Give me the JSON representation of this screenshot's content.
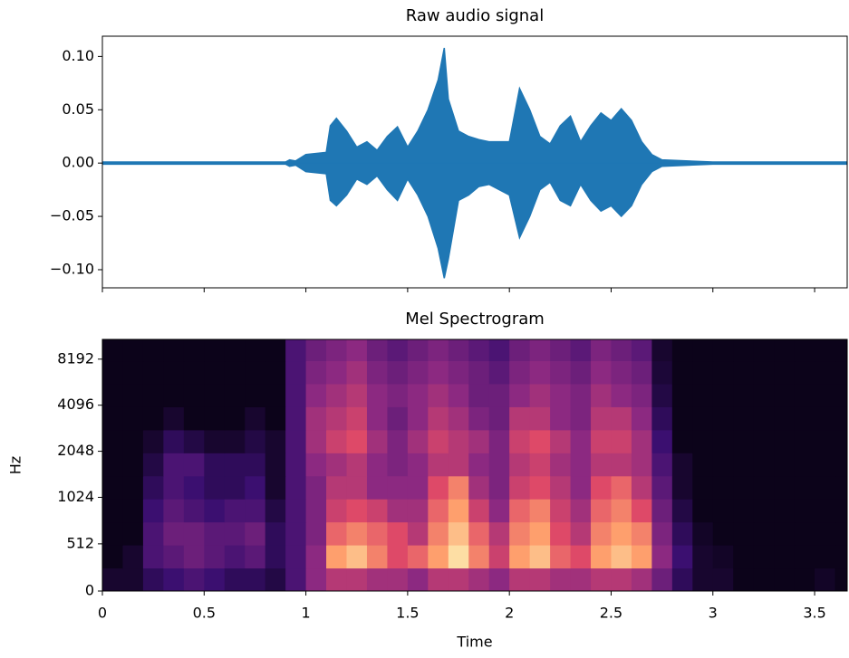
{
  "chart_data": [
    {
      "type": "area",
      "title": "Raw audio signal",
      "color": "#1f77b4",
      "x": [
        0,
        0.9,
        0.92,
        0.95,
        1.0,
        1.1,
        1.12,
        1.15,
        1.2,
        1.25,
        1.3,
        1.35,
        1.4,
        1.45,
        1.5,
        1.55,
        1.6,
        1.65,
        1.68,
        1.7,
        1.75,
        1.8,
        1.85,
        1.9,
        1.95,
        2.0,
        2.05,
        2.1,
        2.15,
        2.2,
        2.25,
        2.3,
        2.35,
        2.4,
        2.45,
        2.5,
        2.55,
        2.6,
        2.65,
        2.7,
        2.75,
        3.0,
        3.66
      ],
      "upper": [
        0.001,
        0.001,
        0.003,
        0.002,
        0.008,
        0.01,
        0.035,
        0.042,
        0.03,
        0.015,
        0.02,
        0.012,
        0.025,
        0.034,
        0.015,
        0.03,
        0.05,
        0.078,
        0.108,
        0.06,
        0.03,
        0.025,
        0.022,
        0.02,
        0.02,
        0.02,
        0.07,
        0.05,
        0.025,
        0.018,
        0.035,
        0.044,
        0.02,
        0.035,
        0.047,
        0.04,
        0.051,
        0.04,
        0.02,
        0.008,
        0.003,
        0.001,
        0.001
      ],
      "lower": [
        -0.001,
        -0.001,
        -0.003,
        -0.002,
        -0.008,
        -0.01,
        -0.035,
        -0.04,
        -0.03,
        -0.015,
        -0.02,
        -0.012,
        -0.025,
        -0.035,
        -0.015,
        -0.03,
        -0.05,
        -0.08,
        -0.108,
        -0.09,
        -0.035,
        -0.03,
        -0.022,
        -0.02,
        -0.025,
        -0.03,
        -0.07,
        -0.05,
        -0.025,
        -0.018,
        -0.035,
        -0.04,
        -0.02,
        -0.035,
        -0.045,
        -0.04,
        -0.05,
        -0.04,
        -0.02,
        -0.008,
        -0.003,
        -0.001,
        -0.001
      ],
      "xlim": [
        0,
        3.66
      ],
      "xticks": [
        0,
        0.5,
        1,
        1.5,
        2,
        2.5,
        3,
        3.5
      ],
      "show_xticklabels": false,
      "ylim": [
        -0.117,
        0.119
      ],
      "yticks": [
        {
          "value": -0.1,
          "label": "−0.10"
        },
        {
          "value": -0.05,
          "label": "−0.05"
        },
        {
          "value": 0,
          "label": "0.00"
        },
        {
          "value": 0.05,
          "label": "0.05"
        },
        {
          "value": 0.1,
          "label": "0.10"
        }
      ]
    },
    {
      "type": "heatmap",
      "title": "Mel Spectrogram",
      "xlabel": "Time",
      "ylabel": "Hz",
      "colormap": "magma",
      "yscale": "symlog",
      "linthresh": 1000,
      "x_edges": [
        0,
        0.1,
        0.2,
        0.3,
        0.4,
        0.5,
        0.6,
        0.7,
        0.8,
        0.9,
        1.0,
        1.1,
        1.2,
        1.3,
        1.4,
        1.5,
        1.6,
        1.7,
        1.8,
        1.9,
        2.0,
        2.1,
        2.2,
        2.3,
        2.4,
        2.5,
        2.6,
        2.7,
        2.8,
        2.9,
        3.0,
        3.1,
        3.2,
        3.3,
        3.4,
        3.5,
        3.6,
        3.66
      ],
      "y_edges": [
        0,
        250,
        500,
        750,
        1000,
        1414,
        2000,
        2828,
        4000,
        5657,
        8000,
        11025
      ],
      "values": [
        [
          0.1,
          0.1,
          0.2,
          0.25,
          0.3,
          0.25,
          0.2,
          0.2,
          0.15,
          0.3,
          0.5,
          0.6,
          0.6,
          0.55,
          0.55,
          0.5,
          0.6,
          0.6,
          0.55,
          0.5,
          0.6,
          0.6,
          0.55,
          0.55,
          0.6,
          0.6,
          0.55,
          0.4,
          0.2,
          0.1,
          0.1,
          0.05,
          0.05,
          0.05,
          0.05,
          0.08,
          0.05
        ],
        [
          0.05,
          0.1,
          0.3,
          0.35,
          0.4,
          0.35,
          0.3,
          0.35,
          0.2,
          0.3,
          0.5,
          0.85,
          0.9,
          0.8,
          0.7,
          0.75,
          0.85,
          0.95,
          0.8,
          0.65,
          0.85,
          0.9,
          0.75,
          0.7,
          0.85,
          0.9,
          0.85,
          0.5,
          0.25,
          0.1,
          0.08,
          0.05,
          0.05,
          0.05,
          0.05,
          0.05,
          0.05
        ],
        [
          0.05,
          0.05,
          0.3,
          0.4,
          0.4,
          0.35,
          0.35,
          0.4,
          0.2,
          0.3,
          0.45,
          0.75,
          0.8,
          0.75,
          0.7,
          0.6,
          0.8,
          0.9,
          0.75,
          0.6,
          0.8,
          0.85,
          0.7,
          0.6,
          0.8,
          0.85,
          0.8,
          0.45,
          0.2,
          0.08,
          0.05,
          0.05,
          0.05,
          0.05,
          0.05,
          0.05,
          0.05
        ],
        [
          0.05,
          0.05,
          0.25,
          0.35,
          0.3,
          0.25,
          0.3,
          0.3,
          0.15,
          0.3,
          0.45,
          0.65,
          0.7,
          0.65,
          0.55,
          0.55,
          0.75,
          0.85,
          0.65,
          0.5,
          0.75,
          0.8,
          0.65,
          0.55,
          0.75,
          0.8,
          0.7,
          0.4,
          0.15,
          0.05,
          0.05,
          0.05,
          0.05,
          0.05,
          0.05,
          0.05,
          0.05
        ],
        [
          0.05,
          0.05,
          0.2,
          0.3,
          0.25,
          0.2,
          0.2,
          0.25,
          0.1,
          0.3,
          0.45,
          0.6,
          0.6,
          0.5,
          0.5,
          0.5,
          0.7,
          0.8,
          0.55,
          0.45,
          0.65,
          0.7,
          0.6,
          0.5,
          0.7,
          0.75,
          0.6,
          0.35,
          0.1,
          0.05,
          0.05,
          0.05,
          0.05,
          0.05,
          0.05,
          0.05,
          0.05
        ],
        [
          0.05,
          0.05,
          0.15,
          0.3,
          0.3,
          0.2,
          0.2,
          0.2,
          0.1,
          0.3,
          0.5,
          0.55,
          0.6,
          0.5,
          0.45,
          0.5,
          0.6,
          0.6,
          0.5,
          0.45,
          0.6,
          0.65,
          0.55,
          0.5,
          0.6,
          0.6,
          0.55,
          0.3,
          0.1,
          0.05,
          0.05,
          0.05,
          0.05,
          0.05,
          0.05,
          0.05,
          0.05
        ],
        [
          0.05,
          0.05,
          0.1,
          0.2,
          0.15,
          0.1,
          0.1,
          0.15,
          0.1,
          0.3,
          0.55,
          0.65,
          0.7,
          0.55,
          0.45,
          0.55,
          0.65,
          0.6,
          0.55,
          0.45,
          0.65,
          0.7,
          0.6,
          0.5,
          0.65,
          0.65,
          0.55,
          0.25,
          0.05,
          0.05,
          0.05,
          0.05,
          0.05,
          0.05,
          0.05,
          0.05,
          0.05
        ],
        [
          0.05,
          0.05,
          0.05,
          0.1,
          0.05,
          0.05,
          0.05,
          0.1,
          0.05,
          0.3,
          0.55,
          0.6,
          0.65,
          0.5,
          0.4,
          0.5,
          0.6,
          0.55,
          0.45,
          0.4,
          0.6,
          0.6,
          0.5,
          0.45,
          0.6,
          0.6,
          0.5,
          0.2,
          0.05,
          0.05,
          0.05,
          0.05,
          0.05,
          0.05,
          0.05,
          0.05,
          0.05
        ],
        [
          0.05,
          0.05,
          0.05,
          0.05,
          0.05,
          0.05,
          0.05,
          0.05,
          0.05,
          0.3,
          0.5,
          0.55,
          0.6,
          0.5,
          0.45,
          0.5,
          0.55,
          0.5,
          0.4,
          0.4,
          0.5,
          0.55,
          0.5,
          0.45,
          0.55,
          0.5,
          0.45,
          0.15,
          0.05,
          0.05,
          0.05,
          0.05,
          0.05,
          0.05,
          0.05,
          0.05,
          0.05
        ],
        [
          0.05,
          0.05,
          0.05,
          0.05,
          0.05,
          0.05,
          0.05,
          0.05,
          0.05,
          0.3,
          0.45,
          0.5,
          0.55,
          0.45,
          0.4,
          0.45,
          0.5,
          0.45,
          0.4,
          0.35,
          0.45,
          0.5,
          0.45,
          0.4,
          0.5,
          0.45,
          0.4,
          0.12,
          0.05,
          0.05,
          0.05,
          0.05,
          0.05,
          0.05,
          0.05,
          0.05,
          0.05
        ],
        [
          0.05,
          0.05,
          0.05,
          0.05,
          0.05,
          0.05,
          0.05,
          0.05,
          0.05,
          0.3,
          0.4,
          0.45,
          0.5,
          0.4,
          0.35,
          0.4,
          0.45,
          0.4,
          0.35,
          0.3,
          0.4,
          0.45,
          0.4,
          0.35,
          0.45,
          0.4,
          0.35,
          0.1,
          0.05,
          0.05,
          0.05,
          0.05,
          0.05,
          0.05,
          0.05,
          0.05,
          0.05
        ]
      ],
      "xlim": [
        0,
        3.66
      ],
      "xticks": [
        0,
        0.5,
        1,
        1.5,
        2,
        2.5,
        3,
        3.5
      ],
      "ylim": [
        0,
        11025
      ],
      "yticks": [
        0,
        512,
        1024,
        2048,
        4096,
        8192
      ]
    }
  ]
}
